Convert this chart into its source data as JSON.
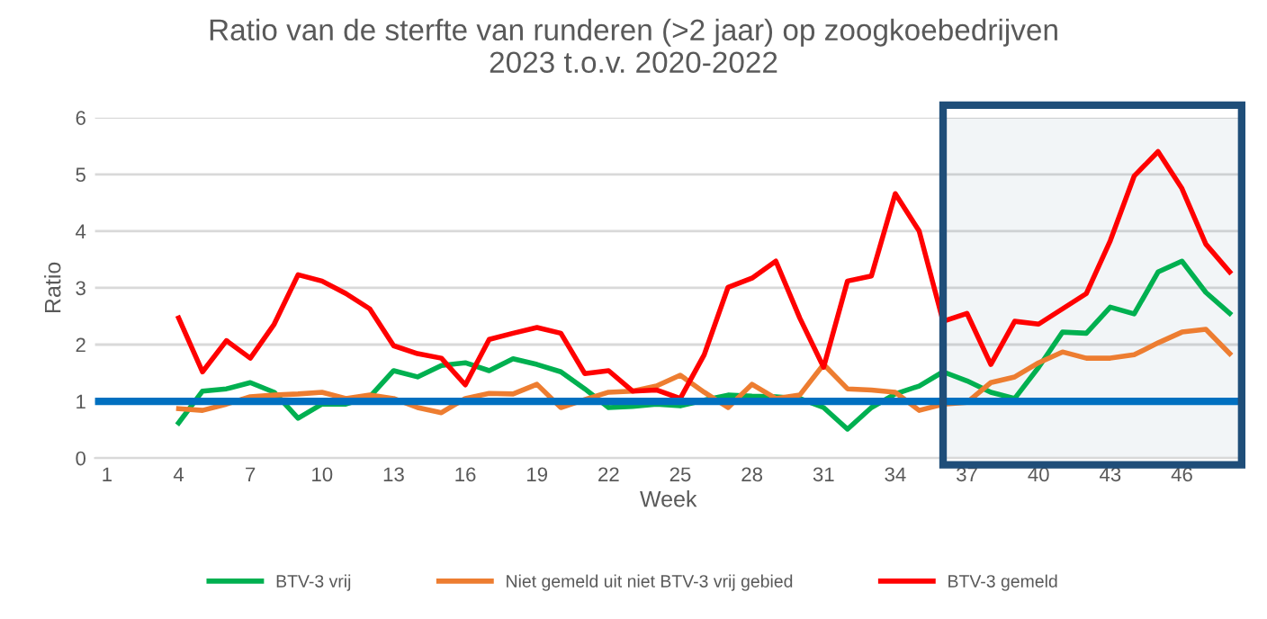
{
  "chart_data": {
    "type": "line",
    "title": "Ratio van de sterfte van runderen (>2 jaar) op zoogkoebedrijven\n2023 t.o.v. 2020-2022",
    "xlabel": "Week",
    "ylabel": "Ratio",
    "x": [
      4,
      5,
      6,
      7,
      8,
      9,
      10,
      11,
      12,
      13,
      14,
      15,
      16,
      17,
      18,
      19,
      20,
      21,
      22,
      23,
      24,
      25,
      26,
      27,
      28,
      29,
      30,
      31,
      32,
      33,
      34,
      35,
      36,
      37,
      38,
      39,
      40,
      41,
      42,
      43,
      44,
      45,
      46,
      47,
      48
    ],
    "series": [
      {
        "name": "BTV-3 vrij",
        "color": "#00b050",
        "values": [
          0.62,
          1.18,
          1.22,
          1.33,
          1.16,
          0.7,
          0.95,
          0.95,
          1.08,
          1.54,
          1.43,
          1.63,
          1.68,
          1.54,
          1.75,
          1.65,
          1.52,
          1.22,
          0.89,
          0.91,
          0.95,
          0.92,
          1.02,
          1.11,
          1.09,
          1.08,
          1.05,
          0.89,
          0.51,
          0.89,
          1.13,
          1.27,
          1.52,
          1.36,
          1.16,
          1.05,
          1.6,
          2.22,
          2.2,
          2.66,
          2.54,
          3.28,
          3.47,
          2.92,
          2.55
        ]
      },
      {
        "name": "Niet gemeld uit niet BTV-3 vrij gebied",
        "color": "#ed7d31",
        "values": [
          0.87,
          0.84,
          0.95,
          1.08,
          1.11,
          1.13,
          1.16,
          1.05,
          1.11,
          1.05,
          0.89,
          0.8,
          1.05,
          1.14,
          1.13,
          1.3,
          0.89,
          1.03,
          1.16,
          1.18,
          1.27,
          1.46,
          1.16,
          0.89,
          1.3,
          1.05,
          1.11,
          1.65,
          1.22,
          1.2,
          1.16,
          0.84,
          0.95,
          0.98,
          1.33,
          1.43,
          1.68,
          1.87,
          1.76,
          1.76,
          1.82,
          2.03,
          2.22,
          2.27,
          1.84
        ]
      },
      {
        "name": "BTV-3 gemeld",
        "color": "#ff0000",
        "values": [
          2.47,
          1.52,
          2.07,
          1.76,
          2.36,
          3.23,
          3.12,
          2.9,
          2.63,
          1.98,
          1.84,
          1.76,
          1.29,
          2.09,
          2.2,
          2.3,
          2.2,
          1.49,
          1.54,
          1.18,
          1.2,
          1.05,
          1.82,
          3.01,
          3.17,
          3.47,
          2.47,
          1.6,
          3.12,
          3.21,
          4.66,
          4.0,
          2.41,
          2.55,
          1.65,
          2.41,
          2.36,
          2.63,
          2.9,
          3.83,
          4.97,
          5.4,
          4.75,
          3.77,
          3.28
        ]
      }
    ],
    "xlim": [
      0.5,
      48.5
    ],
    "xticks": [
      1,
      4,
      7,
      10,
      13,
      16,
      19,
      22,
      25,
      28,
      31,
      34,
      37,
      40,
      43,
      46
    ],
    "ylim": [
      0,
      6
    ],
    "yticks": [
      0,
      1,
      2,
      3,
      4,
      5,
      6
    ],
    "ref_lines": [
      {
        "axis": "y",
        "value": 1,
        "color": "#0070c0"
      }
    ],
    "bands": [
      {
        "axis": "x",
        "from": 36,
        "to": 48.5,
        "color": "#1f4e79"
      }
    ],
    "grid": "y",
    "legend": "bottom",
    "line_style": "solid",
    "marker": "none"
  }
}
